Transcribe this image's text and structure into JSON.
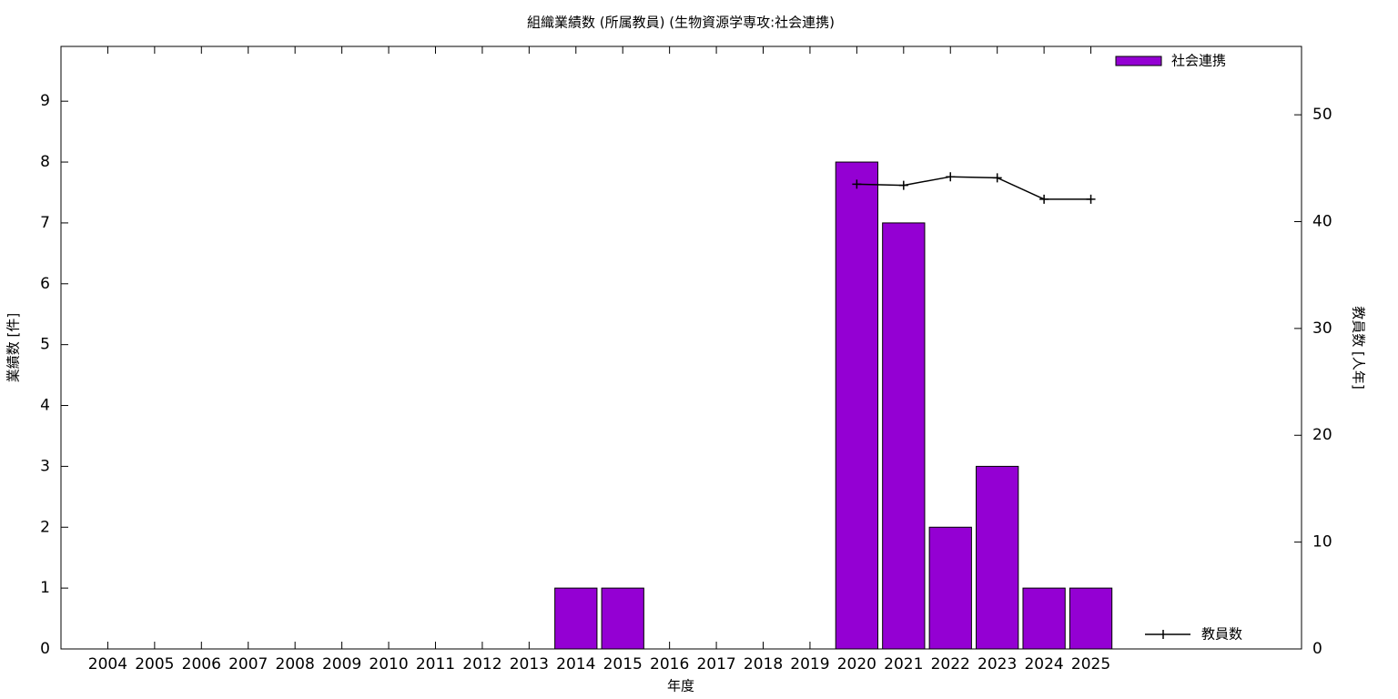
{
  "chart_data": {
    "type": "bar",
    "title": "組織業績数 (所属教員) (生物資源学専攻:社会連携)",
    "xlabel": "年度",
    "ylabel": "業績数 [件]",
    "y2label": "教員数 [人年]",
    "categories": [
      "2004",
      "2005",
      "2006",
      "2007",
      "2008",
      "2009",
      "2010",
      "2011",
      "2012",
      "2013",
      "2014",
      "2015",
      "2016",
      "2017",
      "2018",
      "2019",
      "2020",
      "2021",
      "2022",
      "2023",
      "2024",
      "2025"
    ],
    "series": [
      {
        "name": "社会連携",
        "type": "bar",
        "color": "#9400d3",
        "values": [
          0,
          0,
          0,
          0,
          0,
          0,
          0,
          0,
          0,
          0,
          1,
          1,
          0,
          0,
          0,
          0,
          8,
          7,
          2,
          3,
          1,
          1
        ]
      },
      {
        "name": "教員数",
        "type": "line",
        "axis": "y2",
        "color": "#000000",
        "values": [
          null,
          null,
          null,
          null,
          null,
          null,
          null,
          null,
          null,
          null,
          null,
          null,
          null,
          null,
          null,
          null,
          43.5,
          43.4,
          44.2,
          44.1,
          42.1,
          42.1
        ]
      }
    ],
    "ylim": [
      0,
      9.9
    ],
    "yticks": [
      0,
      1,
      2,
      3,
      4,
      5,
      6,
      7,
      8,
      9
    ],
    "y2lim": [
      0,
      56.4
    ],
    "y2ticks": [
      0,
      10,
      20,
      30,
      40,
      50
    ],
    "grid": false
  }
}
